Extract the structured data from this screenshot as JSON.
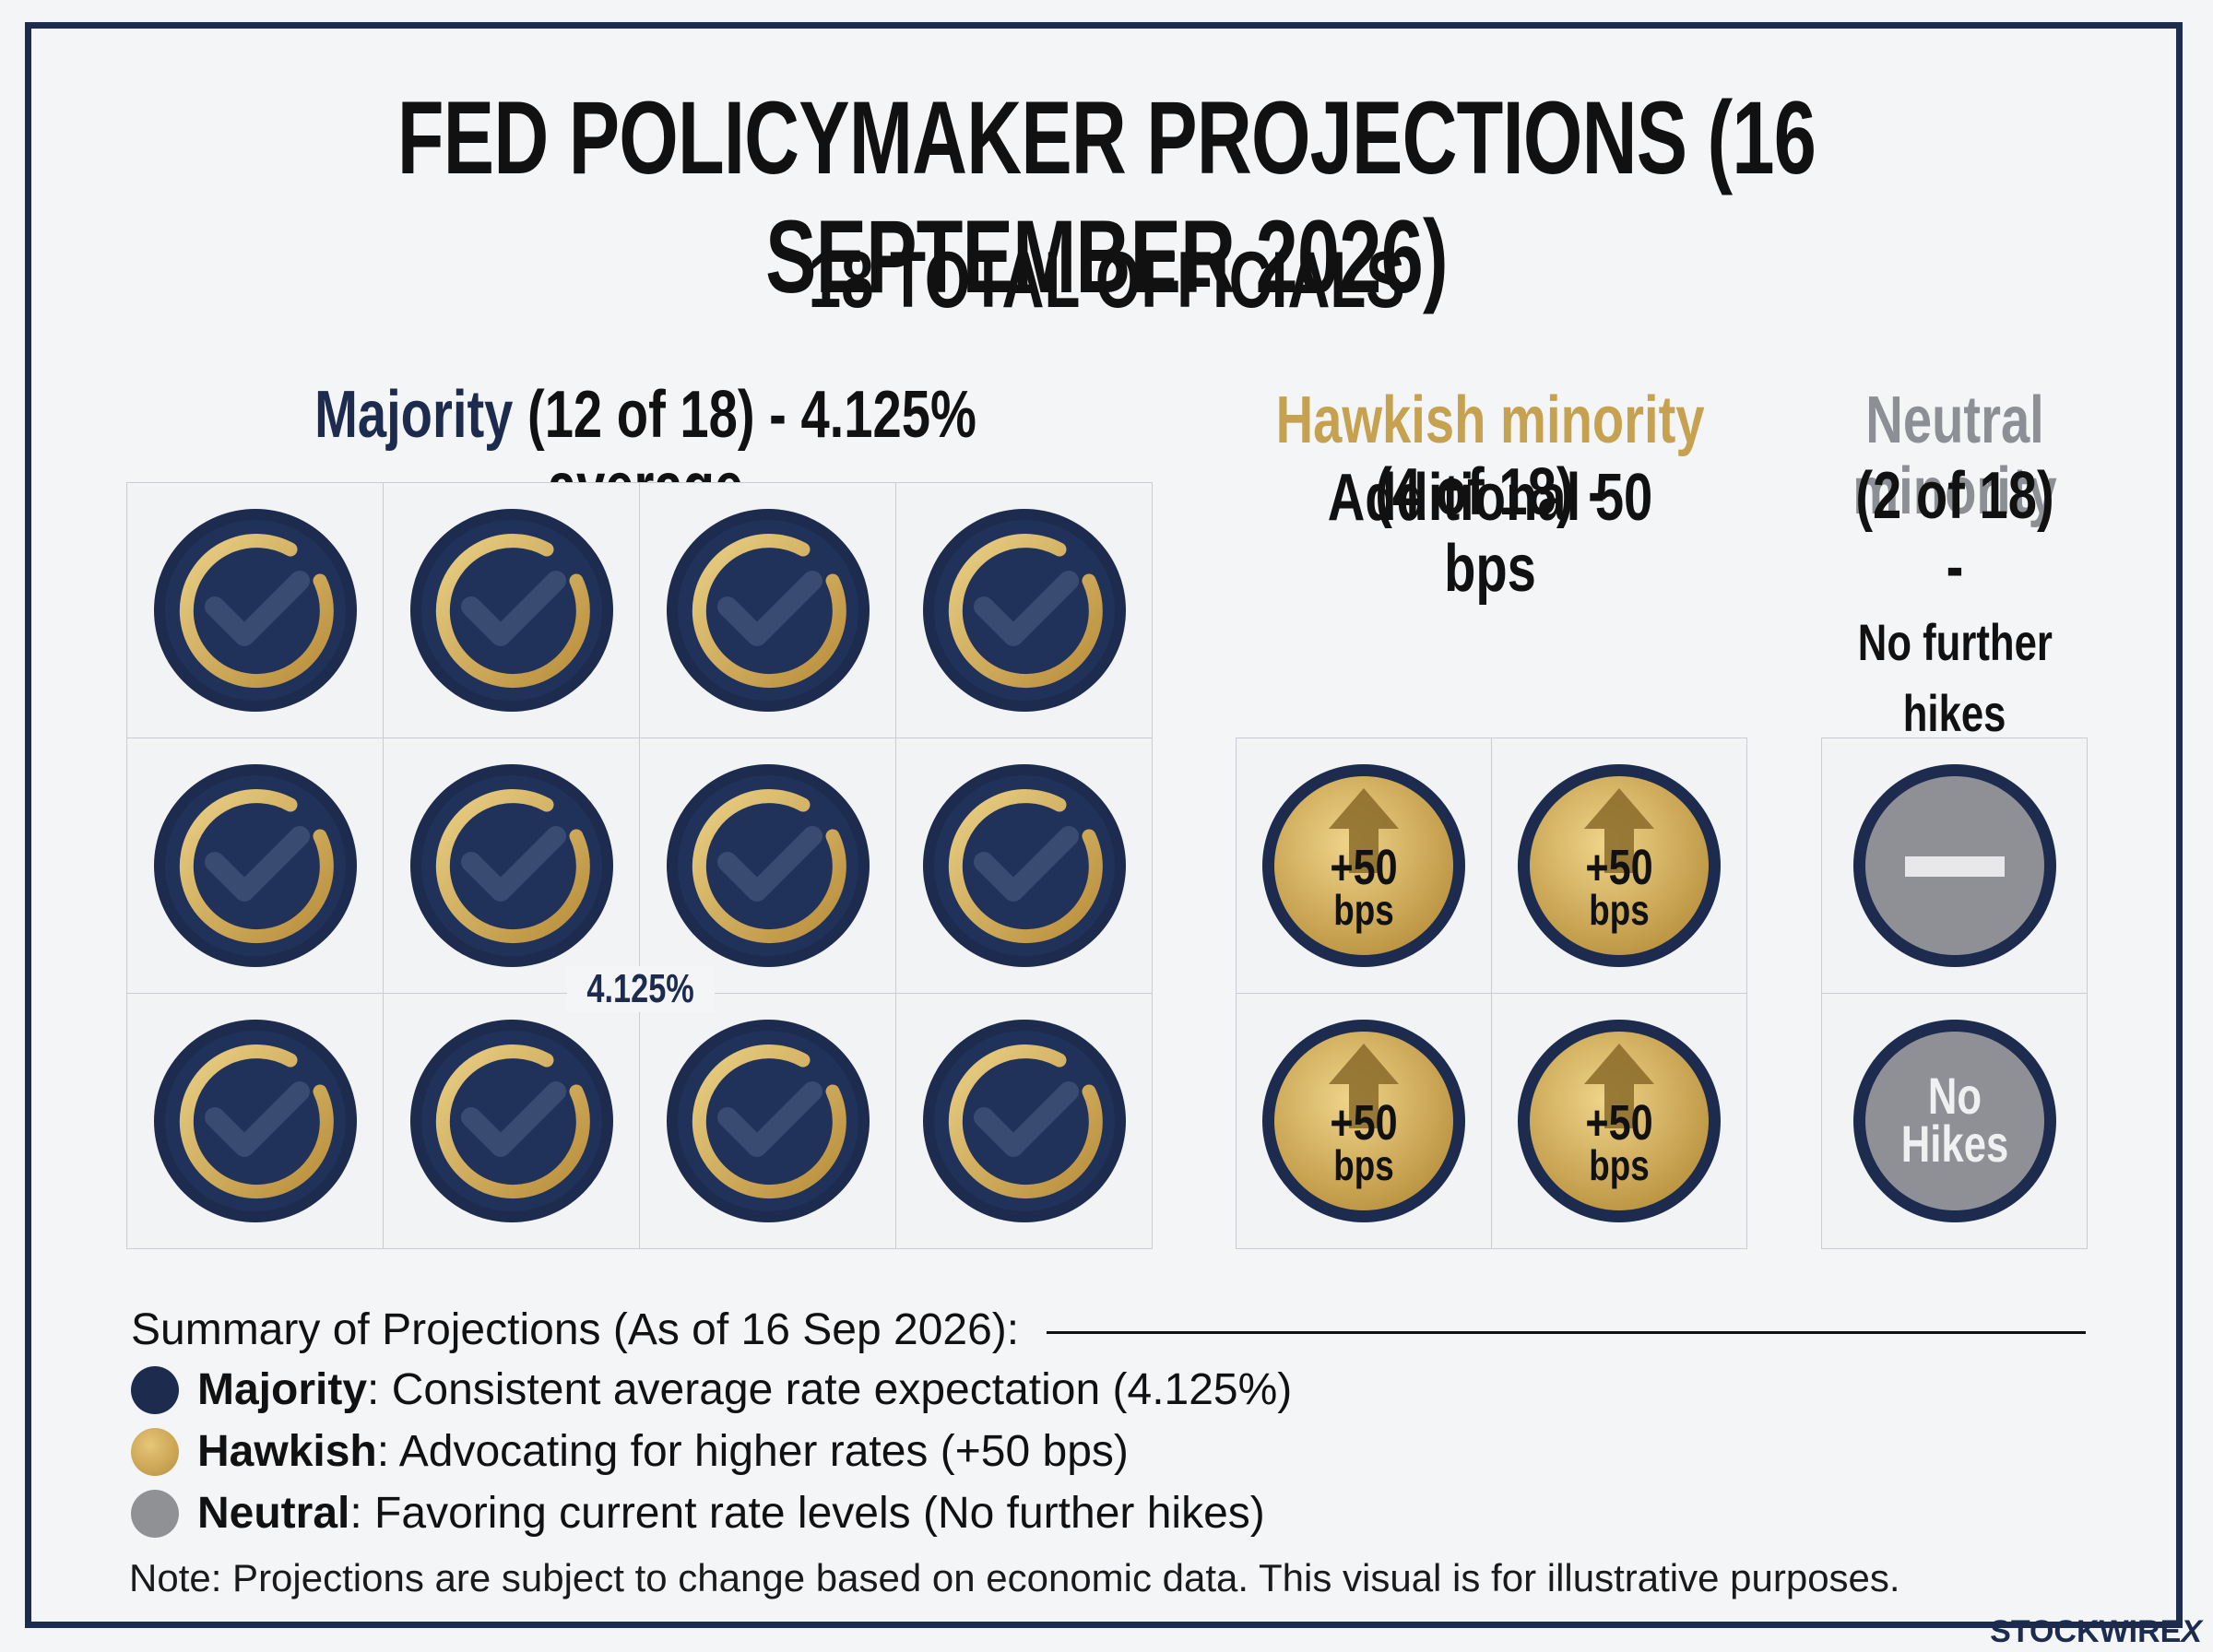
{
  "title": "FED POLICYMAKER PROJECTIONS (16 SEPTEMBER 2026)",
  "subtitle": "18 TOTAL OFFICIALS",
  "groups": {
    "majority": {
      "name": "Majority",
      "detail": "(12 of 18) - 4.125% average",
      "count": 12,
      "icon": "check-badge-icon",
      "average_label": "4.125%",
      "color": "#1c2b4e"
    },
    "hawkish": {
      "name": "Hawkish minority",
      "detail_line1": "(4 of 18) -",
      "detail_line2": "Additional 50 bps",
      "count": 4,
      "icon": "up-arrow-icon",
      "badge_line1": "+50",
      "badge_line2": "bps",
      "color": "#c6a14f"
    },
    "neutral": {
      "name_line1": "Neutral",
      "name_line2": "minority",
      "detail_line1": "(2 of 18) -",
      "detail_line2": "No further",
      "detail_line3": "hikes",
      "count": 2,
      "icons": [
        "minus-icon",
        "no-hikes-badge"
      ],
      "badge_line1": "No",
      "badge_line2": "Hikes",
      "color": "#8c8f94"
    }
  },
  "summary": {
    "heading": "Summary of Projections (As of 16 Sep 2026):",
    "items": [
      {
        "key": "Majority",
        "text": ": Consistent average rate expectation (4.125%)",
        "color": "#1c2b4e"
      },
      {
        "key": "Hawkish",
        "text": ": Advocating for higher rates (+50 bps)",
        "color": "#c6a14f"
      },
      {
        "key": "Neutral",
        "text": ": Favoring current rate levels (No further hikes)",
        "color": "#8f9195"
      }
    ]
  },
  "note": "Note: Projections are subject to change based on economic data. This visual is for illustrative purposes.",
  "brand": "STOCKWIRE",
  "brand_mark": "X"
}
